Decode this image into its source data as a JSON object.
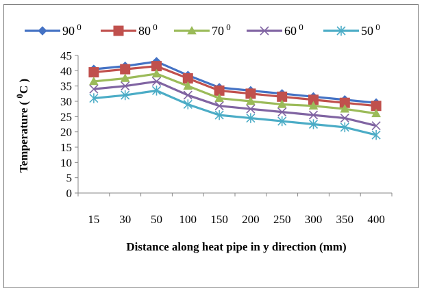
{
  "chart_data": {
    "type": "line",
    "title": "",
    "xlabel": "Distance along heat pipe in y direction (mm)",
    "ylabel_text": "Temperature ( ",
    "ylabel_sup": "0",
    "ylabel_unit": "C )",
    "categories": [
      "15",
      "30",
      "50",
      "100",
      "150",
      "200",
      "250",
      "300",
      "350",
      "400"
    ],
    "y_ticks": [
      "0",
      "5",
      "10",
      "15",
      "20",
      "25",
      "30",
      "35",
      "40",
      "45"
    ],
    "ylim": [
      0,
      45
    ],
    "grid": false,
    "legend_position": "top",
    "series": [
      {
        "name": "90",
        "sup": "0",
        "color": "#4472C4",
        "marker": "diamond",
        "values": [
          40.5,
          41.5,
          43,
          38.5,
          34.5,
          33.5,
          32.5,
          31.5,
          30.5,
          29.5
        ]
      },
      {
        "name": "80",
        "sup": "0",
        "color": "#C0504D",
        "marker": "square",
        "values": [
          39.5,
          40.5,
          41.5,
          37.5,
          33.5,
          32.5,
          31.5,
          30.5,
          29.5,
          28.5
        ]
      },
      {
        "name": "70",
        "sup": "0",
        "color": "#9BBB59",
        "marker": "triangle",
        "values": [
          36.5,
          37.5,
          39,
          35,
          31,
          30,
          29,
          28.5,
          27.5,
          26
        ]
      },
      {
        "name": "60",
        "sup": "0",
        "color": "#8064A2",
        "marker": "x",
        "values": [
          34,
          35,
          36.5,
          32,
          28.5,
          27.5,
          26.5,
          25.5,
          24.5,
          22
        ]
      },
      {
        "name": "50",
        "sup": "0",
        "color": "#4BACC6",
        "marker": "star",
        "values": [
          31,
          32,
          33.5,
          29,
          25.5,
          24.5,
          23.5,
          22.5,
          21.5,
          19
        ]
      }
    ]
  }
}
